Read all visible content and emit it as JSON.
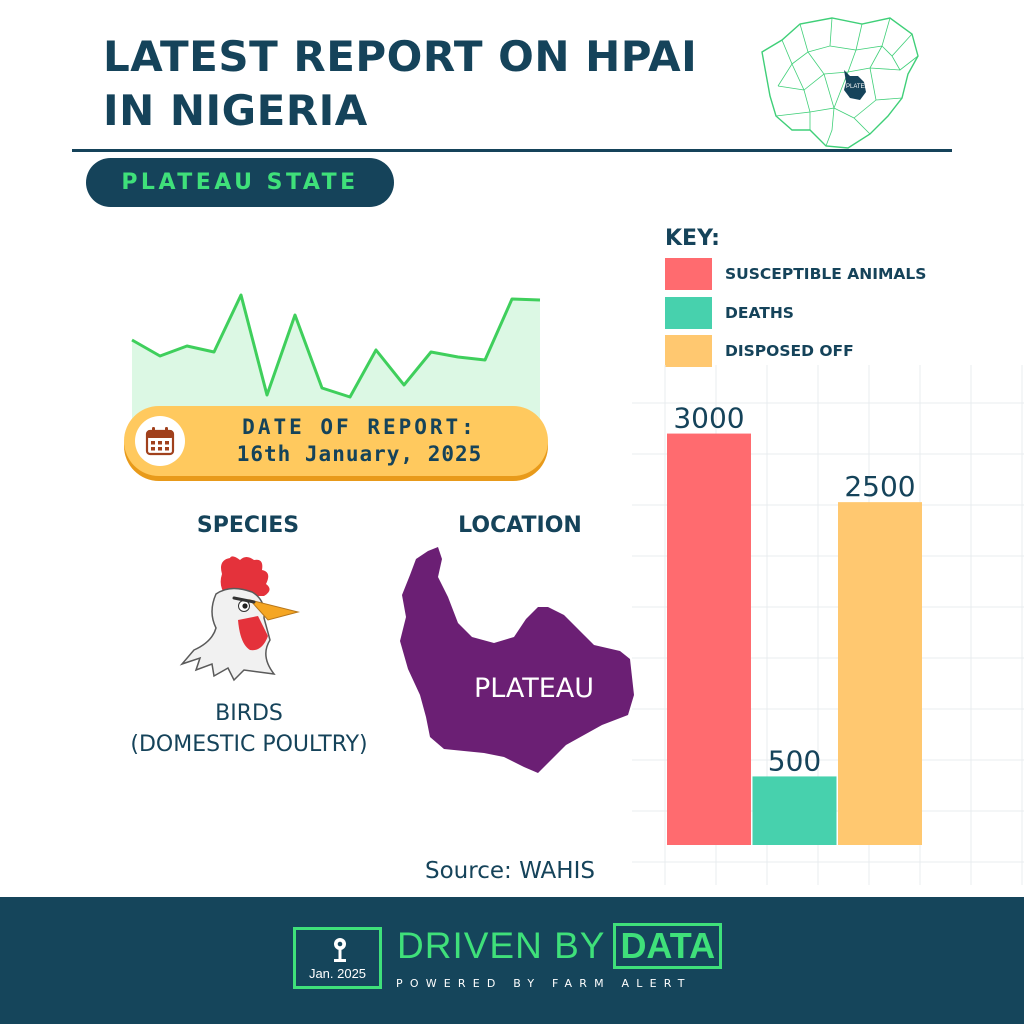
{
  "header": {
    "title_line1": "LATEST REPORT ON HPAI",
    "title_line2": "IN NIGERIA",
    "map_label": "PLATEAU"
  },
  "state_label": "PLATEAU STATE",
  "key": {
    "title": "KEY:",
    "items": [
      {
        "label": "SUSCEPTIBLE ANIMALS",
        "color": "#ff6b6f"
      },
      {
        "label": "DEATHS",
        "color": "#47d1ad"
      },
      {
        "label": "DISPOSED OFF",
        "color": "#ffc870"
      }
    ]
  },
  "report_date": {
    "label": "DATE OF REPORT:",
    "value": "16th January, 2025",
    "icon": "calendar-icon"
  },
  "species": {
    "label": "SPECIES",
    "name_line1": "BIRDS",
    "name_line2": "(DOMESTIC POULTRY)",
    "icon": "rooster-icon"
  },
  "location": {
    "label": "LOCATION",
    "state": "PLATEAU"
  },
  "source": "Source: WAHIS",
  "colors": {
    "navy": "#15435a",
    "green": "#3fe07a",
    "purple": "#6a1f73",
    "amber": "#ffc95e"
  },
  "chart_data": {
    "type": "bar",
    "categories": [
      "SUSCEPTIBLE ANIMALS",
      "DEATHS",
      "DISPOSED OFF"
    ],
    "values": [
      3000,
      500,
      2500
    ],
    "data_labels": [
      "3000",
      "500",
      "2500"
    ],
    "colors": [
      "#ff6b6f",
      "#47d1ad",
      "#ffc870"
    ],
    "ylim": [
      0,
      3500
    ],
    "grid": true,
    "legend": "top"
  },
  "footer": {
    "badge_date": "Jan. 2025",
    "brand_text": "DRIVEN BY",
    "brand_box": "DATA",
    "powered_by": "POWERED BY FARM ALERT"
  }
}
